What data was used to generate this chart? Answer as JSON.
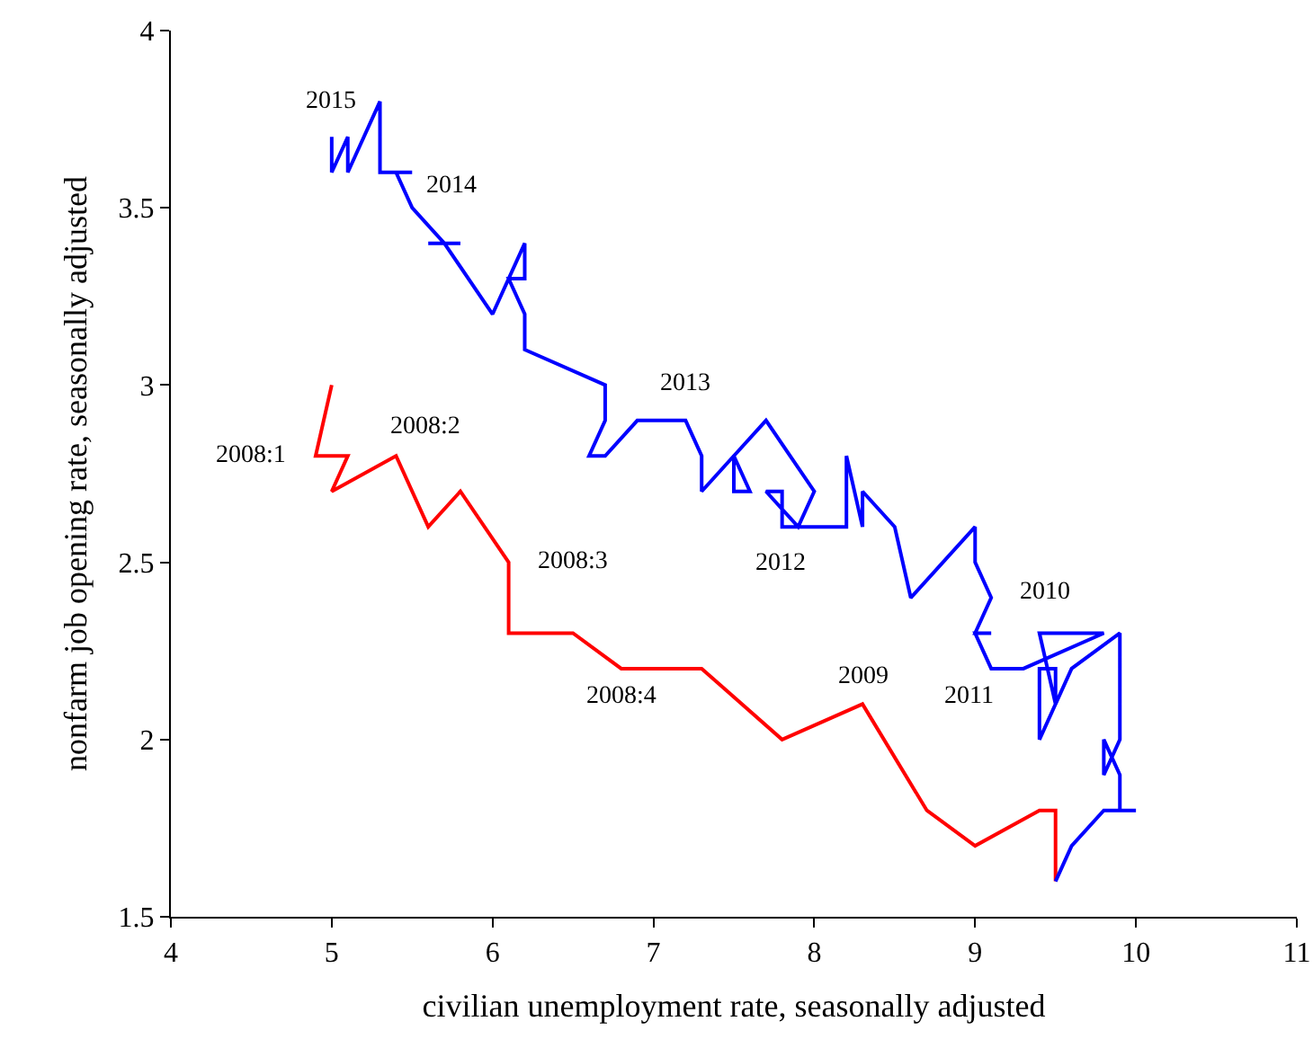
{
  "chart_data": {
    "type": "line",
    "xlabel": "civilian unemployment rate, seasonally adjusted",
    "ylabel": "nonfarm job opening rate, seasonally adjusted",
    "xlim": [
      4,
      11
    ],
    "xticks": [
      4,
      5,
      6,
      7,
      8,
      9,
      10,
      11
    ],
    "ylim": [
      1.5,
      4
    ],
    "yticks": [
      1.5,
      2,
      2.5,
      3,
      3.5,
      4
    ],
    "grid": false,
    "marker": "none",
    "line_style": "solid",
    "series": [
      {
        "color": "#ff0000",
        "x": [
          5.0,
          4.9,
          5.1,
          5.0,
          5.4,
          5.6,
          5.8,
          6.1,
          6.1,
          6.5,
          6.8,
          7.3,
          7.8,
          8.3,
          8.7,
          9.0,
          9.4,
          9.5,
          9.5
        ],
        "values": [
          3.0,
          2.8,
          2.8,
          2.7,
          2.8,
          2.6,
          2.7,
          2.5,
          2.3,
          2.3,
          2.2,
          2.2,
          2.0,
          2.1,
          1.8,
          1.7,
          1.8,
          1.8,
          1.6
        ]
      },
      {
        "color": "#0000ff",
        "x": [
          9.5,
          9.6,
          9.8,
          10.0,
          9.9,
          9.9,
          9.8,
          9.8,
          9.9,
          9.9,
          9.6,
          9.5,
          9.5,
          9.4,
          9.4,
          9.5,
          9.4,
          9.8,
          9.3,
          9.1,
          9.0,
          9.1,
          9.0,
          9.1,
          9.0,
          9.0,
          8.6,
          8.5,
          8.3,
          8.3,
          8.2,
          8.2,
          7.8,
          7.8,
          7.7,
          7.9,
          8.0,
          7.7,
          7.5,
          7.6,
          7.5,
          7.5,
          7.3,
          7.3,
          7.2,
          6.9,
          6.7,
          6.6,
          6.7,
          6.7,
          6.2,
          6.2,
          6.1,
          6.2,
          6.2,
          6.0,
          5.7,
          5.8,
          5.6,
          5.7,
          5.5,
          5.4,
          5.5,
          5.3,
          5.3,
          5.1,
          5.1,
          5.0,
          5.0
        ],
        "values": [
          1.6,
          1.7,
          1.8,
          1.8,
          1.8,
          1.9,
          2.0,
          1.9,
          2.0,
          2.3,
          2.2,
          2.1,
          2.2,
          2.2,
          2.0,
          2.1,
          2.3,
          2.3,
          2.2,
          2.2,
          2.3,
          2.3,
          2.3,
          2.4,
          2.5,
          2.6,
          2.4,
          2.6,
          2.7,
          2.6,
          2.8,
          2.6,
          2.6,
          2.7,
          2.7,
          2.6,
          2.7,
          2.9,
          2.8,
          2.7,
          2.7,
          2.8,
          2.7,
          2.8,
          2.9,
          2.9,
          2.8,
          2.8,
          2.9,
          3.0,
          3.1,
          3.2,
          3.3,
          3.3,
          3.4,
          3.2,
          3.4,
          3.4,
          3.4,
          3.4,
          3.5,
          3.6,
          3.6,
          3.6,
          3.8,
          3.6,
          3.7,
          3.6,
          3.7
        ]
      }
    ],
    "annotations": [
      {
        "text": "2008:1",
        "x": 4.9,
        "y": 2.8
      },
      {
        "text": "2008:2",
        "x": 5.4,
        "y": 2.8
      },
      {
        "text": "2008:3",
        "x": 6.1,
        "y": 2.5
      },
      {
        "text": "2008:4",
        "x": 6.8,
        "y": 2.2
      },
      {
        "text": "2009",
        "x": 8.3,
        "y": 2.1
      },
      {
        "text": "2010",
        "x": 9.1,
        "y": 2.4
      },
      {
        "text": "2011",
        "x": 9.3,
        "y": 2.2
      },
      {
        "text": "2012",
        "x": 7.9,
        "y": 2.6
      },
      {
        "text": "2013",
        "x": 7.2,
        "y": 2.9
      },
      {
        "text": "2014",
        "x": 5.5,
        "y": 3.6
      },
      {
        "text": "2015",
        "x": 5.0,
        "y": 3.7
      }
    ]
  }
}
